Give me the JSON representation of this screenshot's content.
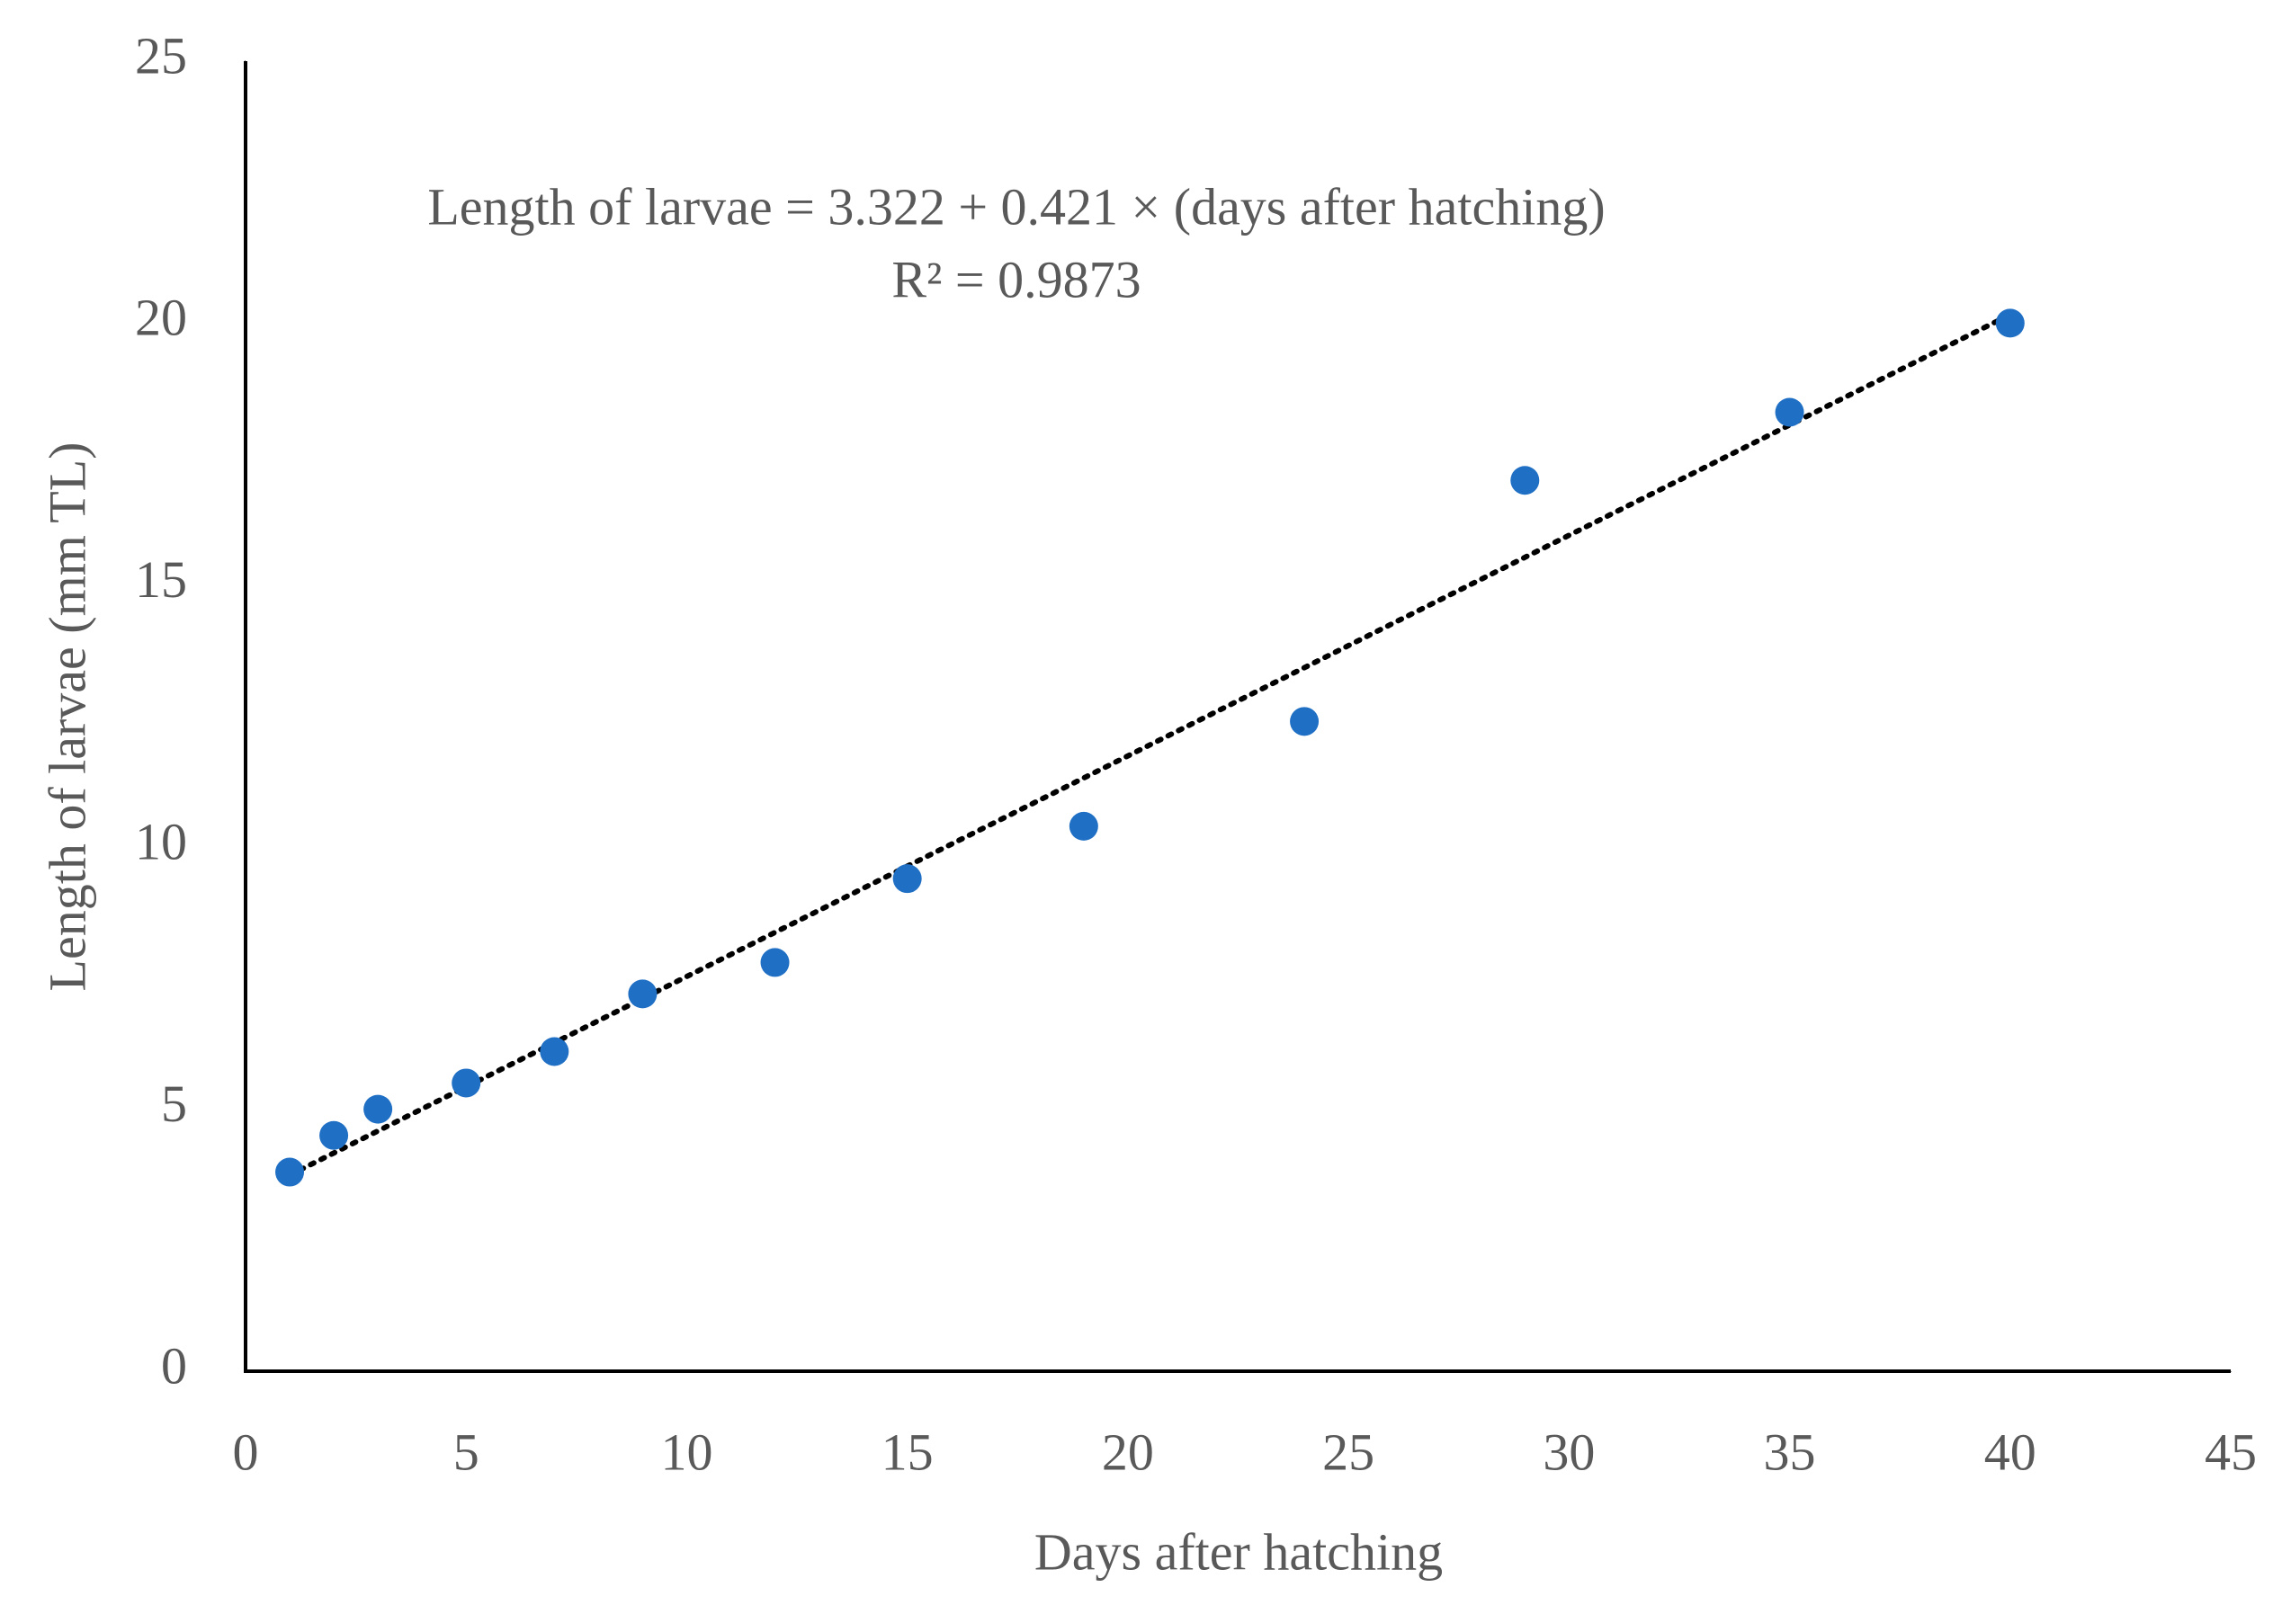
{
  "chart_data": {
    "type": "scatter",
    "x_label": "Days after hatching",
    "y_label": "Length of larvae (mm TL)",
    "annotations": [
      "Length of larvae = 3.322 + 0.421 × (days after hatching)",
      "R² = 0.9873"
    ],
    "x": [
      1,
      2,
      3,
      5,
      7,
      9,
      12,
      15,
      19,
      24,
      29,
      35,
      40
    ],
    "series": [
      {
        "color": "#1f6fc5",
        "values": [
          3.8,
          4.5,
          5.0,
          5.5,
          6.1,
          7.2,
          7.8,
          9.4,
          10.4,
          12.4,
          17.0,
          18.3,
          20.0
        ]
      }
    ],
    "trendline": {
      "intercept": 3.322,
      "slope": 0.421,
      "x": [
        1,
        40
      ],
      "color": "#000000"
    },
    "xlim": [
      0,
      45
    ],
    "xticks": [
      0,
      5,
      10,
      15,
      20,
      25,
      30,
      35,
      40,
      45
    ],
    "ylim": [
      0,
      25
    ],
    "yticks": [
      0,
      5,
      10,
      15,
      20,
      25
    ],
    "grid": false
  }
}
